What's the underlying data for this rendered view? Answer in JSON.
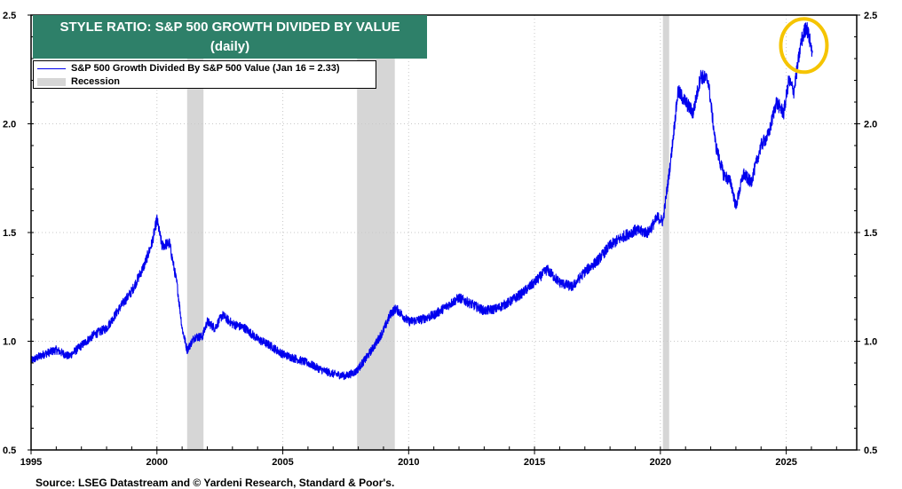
{
  "chart_data": {
    "type": "line",
    "title": "STYLE RATIO: S&P 500 GROWTH DIVIDED BY VALUE",
    "subtitle": "(daily)",
    "xlabel": "",
    "ylabel": "",
    "xlim": [
      1995,
      2027.8
    ],
    "ylim": [
      0.5,
      2.5
    ],
    "x_ticks": [
      "1995",
      "2000",
      "2005",
      "2010",
      "2015",
      "2020",
      "2025"
    ],
    "y_ticks_left": [
      "0.5",
      "1.0",
      "1.5",
      "2.0",
      "2.5"
    ],
    "y_ticks_right": [
      "0.5",
      "1.0",
      "1.5",
      "2.0",
      "2.5"
    ],
    "grid": true,
    "legend_position": "top-left",
    "series": [
      {
        "name": "S&P 500 Growth Divided By S&P 500 Value (Jan 16 = 2.33)",
        "color": "#0000ee",
        "x": [
          1995.0,
          1995.5,
          1996.0,
          1996.5,
          1997.0,
          1997.5,
          1998.0,
          1998.5,
          1999.0,
          1999.5,
          1999.8,
          2000.0,
          2000.2,
          2000.5,
          2000.8,
          2001.0,
          2001.2,
          2001.5,
          2001.8,
          2002.0,
          2002.3,
          2002.6,
          2003.0,
          2003.5,
          2004.0,
          2004.5,
          2005.0,
          2005.5,
          2006.0,
          2006.5,
          2007.0,
          2007.5,
          2007.9,
          2008.3,
          2008.7,
          2009.0,
          2009.3,
          2009.5,
          2010.0,
          2010.5,
          2011.0,
          2011.5,
          2012.0,
          2012.5,
          2013.0,
          2013.5,
          2014.0,
          2014.5,
          2015.0,
          2015.5,
          2016.0,
          2016.5,
          2017.0,
          2017.5,
          2018.0,
          2018.5,
          2019.0,
          2019.5,
          2019.9,
          2020.1,
          2020.4,
          2020.7,
          2021.0,
          2021.3,
          2021.6,
          2021.9,
          2022.2,
          2022.5,
          2022.8,
          2023.0,
          2023.3,
          2023.6,
          2024.0,
          2024.3,
          2024.6,
          2024.9,
          2025.1,
          2025.3,
          2025.6,
          2025.8,
          2026.0,
          2026.05
        ],
        "values": [
          0.91,
          0.94,
          0.96,
          0.93,
          0.98,
          1.03,
          1.06,
          1.15,
          1.23,
          1.35,
          1.45,
          1.56,
          1.44,
          1.45,
          1.26,
          1.06,
          0.96,
          1.02,
          1.02,
          1.09,
          1.06,
          1.12,
          1.08,
          1.06,
          1.01,
          0.98,
          0.94,
          0.92,
          0.9,
          0.87,
          0.85,
          0.84,
          0.86,
          0.92,
          0.99,
          1.05,
          1.13,
          1.15,
          1.09,
          1.1,
          1.12,
          1.16,
          1.2,
          1.17,
          1.14,
          1.15,
          1.18,
          1.22,
          1.27,
          1.33,
          1.27,
          1.25,
          1.32,
          1.37,
          1.44,
          1.48,
          1.51,
          1.5,
          1.57,
          1.55,
          1.82,
          2.15,
          2.1,
          2.05,
          2.22,
          2.2,
          1.9,
          1.77,
          1.73,
          1.62,
          1.77,
          1.73,
          1.9,
          1.95,
          2.1,
          2.05,
          2.2,
          2.15,
          2.38,
          2.45,
          2.35,
          2.33
        ]
      }
    ],
    "recessions": [
      {
        "start": 2001.2,
        "end": 2001.85
      },
      {
        "start": 2007.95,
        "end": 2009.45
      },
      {
        "start": 2020.1,
        "end": 2020.35
      }
    ],
    "annotation": {
      "type": "circle",
      "label": "",
      "x": 2025.7,
      "y": 2.36
    }
  },
  "legend": {
    "series_label": "S&P 500 Growth Divided By S&P 500 Value (Jan 16 = 2.33)",
    "recession_label": "Recession"
  },
  "source": "Source: LSEG Datastream and © Yardeni Research, Standard & Poor's.",
  "colors": {
    "line": "#0000ee",
    "title_bg": "#2e8069",
    "recession": "#d6d6d6",
    "highlight": "#f5c400"
  }
}
